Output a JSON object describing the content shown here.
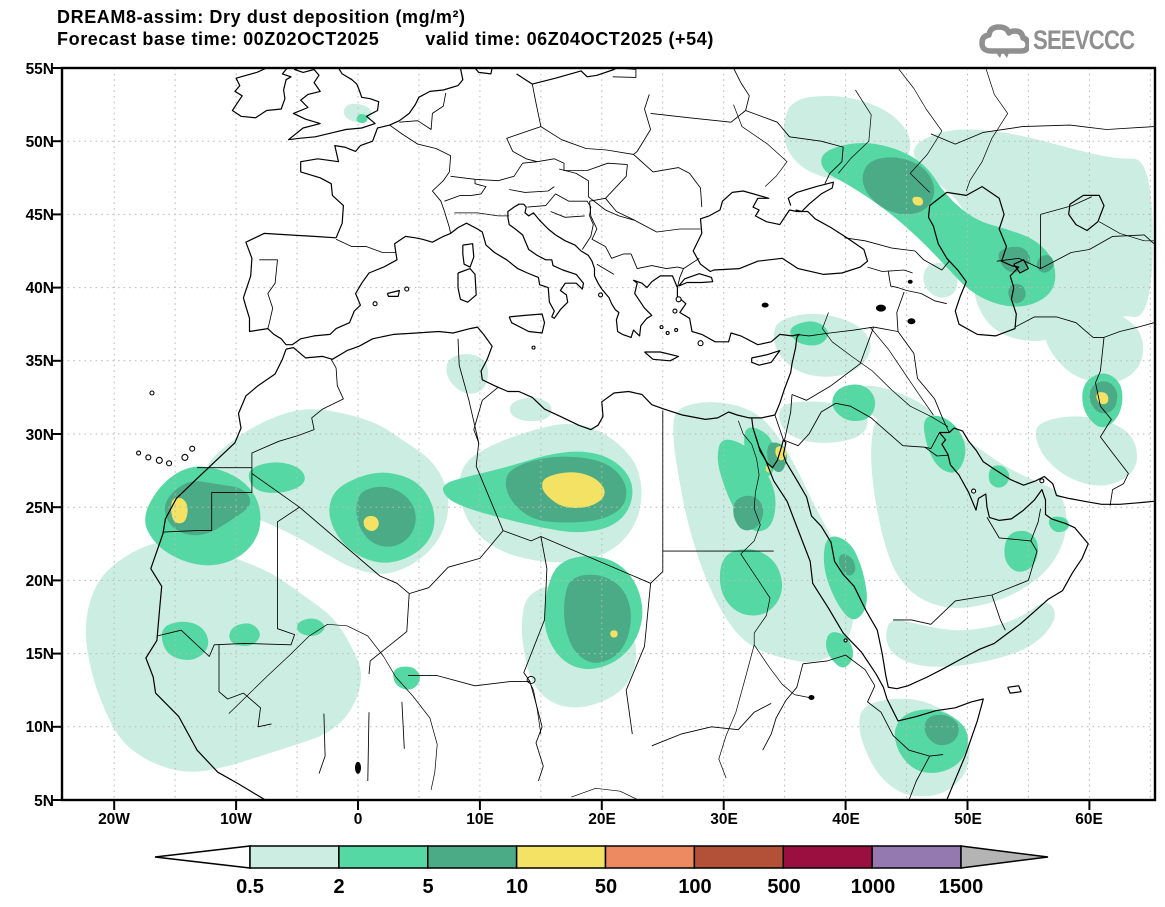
{
  "title": {
    "line1": "DREAM8-assim: Dry dust deposition (mg/m²)",
    "line2a": "Forecast base time: 00Z02OCT2025",
    "line2b": "valid time: 06Z04OCT2025 (+54)"
  },
  "logo": {
    "text": "SEEVCCC"
  },
  "axes": {
    "x_labels": [
      "20W",
      "10W",
      "0",
      "10E",
      "20E",
      "30E",
      "40E",
      "50E",
      "60E"
    ],
    "y_labels": [
      "55N",
      "50N",
      "45N",
      "40N",
      "35N",
      "30N",
      "25N",
      "20N",
      "15N",
      "10N",
      "5N"
    ]
  },
  "legend": {
    "levels": [
      "0.5",
      "2",
      "5",
      "10",
      "50",
      "100",
      "500",
      "1000",
      "1500"
    ],
    "colors": [
      "#cceee2",
      "#56d8a4",
      "#4cab87",
      "#f4e264",
      "#ee8a61",
      "#b25038",
      "#9a0f3f",
      "#9478b0"
    ],
    "underflow_color": "#ffffff",
    "overflow_color": "#b4b4b4"
  },
  "chart_data": {
    "type": "heatmap",
    "subtype": "filled-contour-geographic-map",
    "title": "DREAM8-assim: Dry dust deposition (mg/m²)",
    "units": "mg/m²",
    "forecast_base_time": "00Z02OCT2025",
    "valid_time": "06Z04OCT2025",
    "forecast_hour": "+54",
    "source_logo": "SEEVCCC",
    "projection": "equirectangular lat-lon",
    "lon_range_deg": [
      -24.4,
      65.4
    ],
    "lat_range_deg": [
      5,
      55
    ],
    "x_tick_labels": [
      "20W",
      "10W",
      "0",
      "10E",
      "20E",
      "30E",
      "40E",
      "50E",
      "60E"
    ],
    "y_tick_labels": [
      "5N",
      "10N",
      "15N",
      "20N",
      "25N",
      "30N",
      "35N",
      "40N",
      "45N",
      "50N",
      "55N"
    ],
    "grid": "dotted 5-degree graticule",
    "contour_levels_mg_m2": [
      0.5,
      2,
      5,
      10,
      50,
      100,
      500,
      1000,
      1500
    ],
    "legend_position": "bottom horizontal colorbar with under/overflow arrows",
    "deposition_features": [
      {
        "region": "Western Sahara / Mauritania coast",
        "center_lon": -14.5,
        "center_lat": 24.5,
        "max_band_mg_m2": "10-50"
      },
      {
        "region": "Central Algeria",
        "center_lon": 1.0,
        "center_lat": 23.8,
        "max_band_mg_m2": "10-50"
      },
      {
        "region": "Central Libya",
        "center_lon": 18.0,
        "center_lat": 26.0,
        "max_band_mg_m2": "10-50"
      },
      {
        "region": "Gulf of Suez / NE Egypt",
        "center_lon": 34.6,
        "center_lat": 28.5,
        "max_band_mg_m2": "10-50"
      },
      {
        "region": "Sudan / Chad",
        "center_lon": 20.0,
        "center_lat": 17.0,
        "max_band_mg_m2": "10-50"
      },
      {
        "region": "North Caucasus / NW of Caspian Sea",
        "center_lon": 45.8,
        "center_lat": 45.8,
        "max_band_mg_m2": "10-50"
      },
      {
        "region": "East of Caspian (Turkmenistan/Uzbekistan)",
        "center_lon": 54.0,
        "center_lat": 41.5,
        "max_band_mg_m2": "5-10"
      },
      {
        "region": "Eastern Iran (~61E)",
        "center_lon": 61.0,
        "center_lat": 32.4,
        "max_band_mg_m2": "10-50"
      },
      {
        "region": "Somalia / Horn of Africa",
        "center_lon": 48.0,
        "center_lat": 9.5,
        "max_band_mg_m2": "5-10"
      },
      {
        "region": "Sahel / West Africa plume",
        "center_lon": -8.0,
        "center_lat": 15.0,
        "max_band_mg_m2": "2-5"
      },
      {
        "region": "Arabian Peninsula scattered",
        "center_lon": 48.0,
        "center_lat": 24.0,
        "max_band_mg_m2": "2-5"
      },
      {
        "region": "SE England",
        "center_lon": 0.3,
        "center_lat": 51.5,
        "max_band_mg_m2": "2-5"
      },
      {
        "region": "Eastern Ukraine / S Russia",
        "center_lon": 39.0,
        "center_lat": 50.0,
        "max_band_mg_m2": "0.5-2"
      }
    ]
  }
}
